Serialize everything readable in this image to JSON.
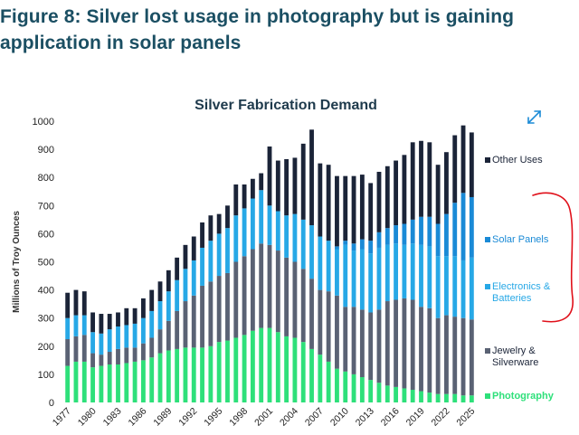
{
  "page": {
    "heading": "Figure 8: Silver lost usage in photography but is gaining\napplication in solar panels",
    "expand_icon": "expand-arrows-icon"
  },
  "colors": {
    "photography": "#2ee07a",
    "jewelry": "#5a6274",
    "electronics": "#27a8e6",
    "solar": "#1a8ad6",
    "other": "#1b2438",
    "title": "#1e3a4c",
    "annotation": "#e0101a"
  },
  "chart_data": {
    "type": "bar",
    "stacked": true,
    "title": "Silver Fabrication Demand",
    "ylabel": "Millions of Troy Ounces",
    "xlabel": "",
    "ylim": [
      0,
      1000
    ],
    "yticks": [
      0,
      100,
      200,
      300,
      400,
      500,
      600,
      700,
      800,
      900,
      1000
    ],
    "grid": false,
    "legend_position": "right",
    "x": [
      1977,
      1978,
      1979,
      1980,
      1981,
      1982,
      1983,
      1984,
      1985,
      1986,
      1987,
      1988,
      1989,
      1990,
      1991,
      1992,
      1993,
      1994,
      1995,
      1996,
      1997,
      1998,
      1999,
      2000,
      2001,
      2002,
      2003,
      2004,
      2005,
      2006,
      2007,
      2008,
      2009,
      2010,
      2011,
      2012,
      2013,
      2014,
      2015,
      2016,
      2017,
      2018,
      2019,
      2020,
      2021,
      2022,
      2023,
      2024,
      2025
    ],
    "xtick_labels": [
      "1977",
      "1980",
      "1983",
      "1986",
      "1989",
      "1992",
      "1995",
      "1998",
      "2001",
      "2004",
      "2007",
      "2010",
      "2013",
      "2016",
      "2019",
      "2022",
      "2025"
    ],
    "series": [
      {
        "name": "Photography",
        "values": [
          130,
          145,
          145,
          125,
          130,
          135,
          135,
          140,
          145,
          150,
          160,
          175,
          185,
          190,
          195,
          195,
          195,
          200,
          215,
          220,
          230,
          240,
          255,
          265,
          265,
          250,
          235,
          230,
          215,
          190,
          170,
          145,
          120,
          110,
          100,
          90,
          80,
          70,
          60,
          55,
          50,
          45,
          40,
          35,
          30,
          30,
          30,
          25,
          25
        ]
      },
      {
        "name": "Jewelry & Silverware",
        "values": [
          95,
          90,
          95,
          50,
          40,
          45,
          55,
          55,
          50,
          60,
          70,
          85,
          105,
          135,
          165,
          185,
          220,
          230,
          235,
          240,
          270,
          280,
          290,
          300,
          295,
          290,
          280,
          270,
          260,
          250,
          230,
          250,
          260,
          230,
          240,
          240,
          240,
          260,
          300,
          310,
          320,
          320,
          300,
          300,
          270,
          280,
          275,
          275,
          270
        ]
      },
      {
        "name": "Electronics & Batteries",
        "values": [
          75,
          75,
          70,
          75,
          75,
          80,
          80,
          80,
          85,
          90,
          95,
          100,
          105,
          110,
          115,
          125,
          135,
          145,
          150,
          160,
          165,
          170,
          180,
          190,
          140,
          140,
          150,
          170,
          175,
          190,
          190,
          180,
          165,
          220,
          200,
          215,
          210,
          220,
          200,
          200,
          190,
          200,
          220,
          220,
          220,
          210,
          215,
          205,
          220
        ]
      },
      {
        "name": "Solar Panels",
        "values": [
          0,
          0,
          0,
          0,
          0,
          0,
          0,
          0,
          0,
          0,
          0,
          0,
          0,
          0,
          0,
          0,
          0,
          0,
          0,
          0,
          0,
          0,
          0,
          0,
          0,
          0,
          0,
          0,
          0,
          0,
          0,
          0,
          10,
          15,
          25,
          35,
          45,
          55,
          60,
          65,
          75,
          85,
          100,
          105,
          115,
          150,
          190,
          240,
          215
        ]
      },
      {
        "name": "Other Uses",
        "values": [
          90,
          90,
          85,
          70,
          70,
          55,
          50,
          60,
          55,
          70,
          75,
          70,
          75,
          80,
          85,
          85,
          90,
          90,
          70,
          80,
          110,
          85,
          70,
          60,
          210,
          180,
          200,
          200,
          270,
          340,
          260,
          270,
          250,
          230,
          240,
          230,
          205,
          215,
          220,
          230,
          245,
          275,
          270,
          265,
          210,
          220,
          240,
          240,
          230
        ]
      }
    ]
  }
}
